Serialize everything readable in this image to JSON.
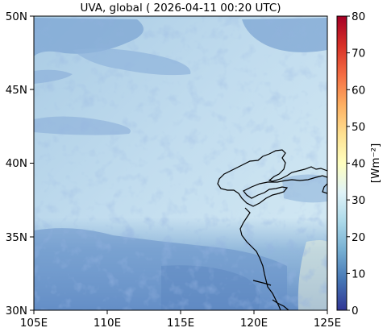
{
  "title": "UVA, global ( 2026-04-11 00:20 UTC)",
  "map": {
    "lon_ticks": [
      "105E",
      "110E",
      "115E",
      "120E",
      "125E"
    ],
    "lat_ticks": [
      "50N",
      "45N",
      "40N",
      "35N",
      "30N"
    ],
    "lon_range": [
      105,
      125
    ],
    "lat_range": [
      30,
      50
    ],
    "coastline_color": "#000000"
  },
  "colorbar": {
    "label": "[Wm⁻²]",
    "ticks": [
      "80",
      "70",
      "60",
      "50",
      "40",
      "30",
      "20",
      "10",
      "0"
    ],
    "range": [
      0,
      80
    ],
    "colormap": "RdYlBu_r",
    "stops": [
      "#313695",
      "#4575b4",
      "#74add1",
      "#abd9e9",
      "#e0f3f8",
      "#ffffbf",
      "#fee090",
      "#fdae61",
      "#f46d43",
      "#d73027",
      "#a50026"
    ]
  }
}
